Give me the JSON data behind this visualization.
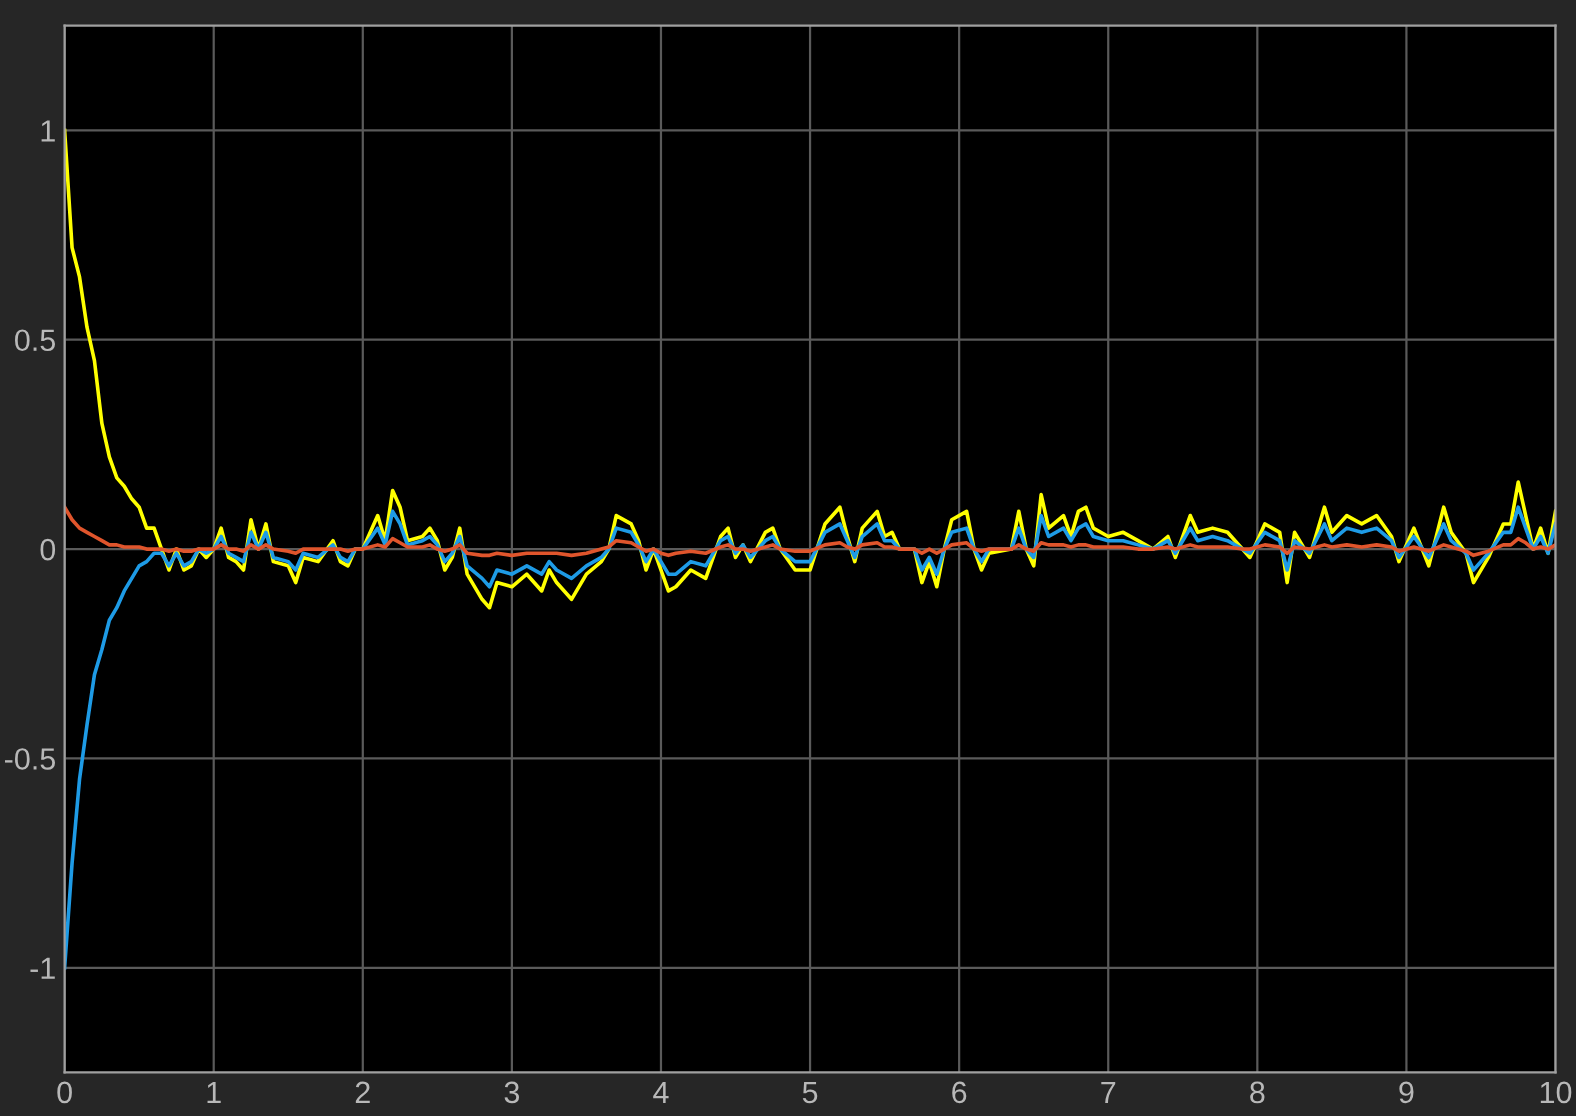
{
  "chart_data": {
    "type": "line",
    "xlim": [
      0,
      10
    ],
    "ylim": [
      -1.25,
      1.25
    ],
    "xticks": [
      0,
      1,
      2,
      3,
      4,
      5,
      6,
      7,
      8,
      9,
      10
    ],
    "yticks": [
      -1,
      -0.5,
      0,
      0.5,
      1
    ],
    "grid": true,
    "x": [
      0,
      0.05,
      0.1,
      0.15,
      0.2,
      0.25,
      0.3,
      0.35,
      0.4,
      0.45,
      0.5,
      0.55,
      0.6,
      0.65,
      0.7,
      0.75,
      0.8,
      0.85,
      0.9,
      0.95,
      1.0,
      1.05,
      1.1,
      1.15,
      1.2,
      1.25,
      1.3,
      1.35,
      1.4,
      1.5,
      1.55,
      1.6,
      1.7,
      1.8,
      1.85,
      1.9,
      1.95,
      2.0,
      2.1,
      2.15,
      2.2,
      2.25,
      2.3,
      2.4,
      2.45,
      2.5,
      2.55,
      2.6,
      2.65,
      2.7,
      2.8,
      2.85,
      2.9,
      3.0,
      3.1,
      3.2,
      3.25,
      3.3,
      3.4,
      3.5,
      3.6,
      3.65,
      3.7,
      3.8,
      3.85,
      3.9,
      3.95,
      4.0,
      4.05,
      4.1,
      4.2,
      4.3,
      4.4,
      4.45,
      4.5,
      4.55,
      4.6,
      4.7,
      4.75,
      4.8,
      4.9,
      5.0,
      5.1,
      5.2,
      5.25,
      5.3,
      5.35,
      5.45,
      5.5,
      5.55,
      5.6,
      5.7,
      5.75,
      5.8,
      5.85,
      5.9,
      5.95,
      6.05,
      6.1,
      6.15,
      6.2,
      6.35,
      6.4,
      6.45,
      6.5,
      6.55,
      6.6,
      6.7,
      6.75,
      6.8,
      6.85,
      6.9,
      7.0,
      7.1,
      7.2,
      7.3,
      7.4,
      7.45,
      7.55,
      7.6,
      7.7,
      7.8,
      7.9,
      7.95,
      8.05,
      8.15,
      8.2,
      8.25,
      8.35,
      8.45,
      8.5,
      8.6,
      8.7,
      8.8,
      8.9,
      8.95,
      9.05,
      9.15,
      9.25,
      9.3,
      9.4,
      9.45,
      9.55,
      9.65,
      9.7,
      9.75,
      9.8,
      9.85,
      9.9,
      9.95,
      10.0
    ],
    "series": [
      {
        "color": "#ffff00",
        "values": [
          1.0,
          0.72,
          0.65,
          0.53,
          0.45,
          0.3,
          0.22,
          0.17,
          0.15,
          0.12,
          0.1,
          0.05,
          0.05,
          0.0,
          -0.05,
          0.0,
          -0.05,
          -0.04,
          0.0,
          -0.02,
          0.0,
          0.05,
          -0.02,
          -0.03,
          -0.05,
          0.07,
          0.0,
          0.06,
          -0.03,
          -0.04,
          -0.08,
          -0.02,
          -0.03,
          0.02,
          -0.03,
          -0.04,
          0.0,
          0.0,
          0.08,
          0.02,
          0.14,
          0.1,
          0.02,
          0.03,
          0.05,
          0.02,
          -0.05,
          -0.02,
          0.05,
          -0.06,
          -0.12,
          -0.14,
          -0.08,
          -0.09,
          -0.06,
          -0.1,
          -0.05,
          -0.08,
          -0.12,
          -0.06,
          -0.03,
          0.0,
          0.08,
          0.06,
          0.02,
          -0.05,
          0.0,
          -0.05,
          -0.1,
          -0.09,
          -0.05,
          -0.07,
          0.03,
          0.05,
          -0.02,
          0.01,
          -0.03,
          0.04,
          0.05,
          0.0,
          -0.05,
          -0.05,
          0.06,
          0.1,
          0.03,
          -0.03,
          0.05,
          0.09,
          0.03,
          0.04,
          0.0,
          0.0,
          -0.08,
          -0.03,
          -0.09,
          0.0,
          0.07,
          0.09,
          0.0,
          -0.05,
          -0.01,
          0.0,
          0.09,
          0.0,
          -0.04,
          0.13,
          0.05,
          0.08,
          0.03,
          0.09,
          0.1,
          0.05,
          0.03,
          0.04,
          0.02,
          0.0,
          0.03,
          -0.02,
          0.08,
          0.04,
          0.05,
          0.04,
          0.0,
          -0.02,
          0.06,
          0.04,
          -0.08,
          0.04,
          -0.02,
          0.1,
          0.04,
          0.08,
          0.06,
          0.08,
          0.03,
          -0.03,
          0.05,
          -0.04,
          0.1,
          0.04,
          -0.01,
          -0.08,
          -0.02,
          0.06,
          0.06,
          0.16,
          0.08,
          0.0,
          0.05,
          -0.01,
          0.09
        ]
      },
      {
        "color": "#1e9be6",
        "values": [
          -1.0,
          -0.75,
          -0.55,
          -0.42,
          -0.3,
          -0.24,
          -0.17,
          -0.14,
          -0.1,
          -0.07,
          -0.04,
          -0.03,
          -0.01,
          -0.01,
          -0.04,
          -0.01,
          -0.04,
          -0.03,
          0.0,
          -0.01,
          0.0,
          0.03,
          -0.01,
          -0.02,
          -0.03,
          0.04,
          0.0,
          0.04,
          -0.02,
          -0.03,
          -0.05,
          -0.01,
          -0.02,
          0.01,
          -0.02,
          -0.03,
          0.0,
          0.0,
          0.05,
          0.01,
          0.09,
          0.06,
          0.01,
          0.02,
          0.03,
          0.01,
          -0.03,
          -0.01,
          0.03,
          -0.04,
          -0.07,
          -0.09,
          -0.05,
          -0.06,
          -0.04,
          -0.06,
          -0.03,
          -0.05,
          -0.07,
          -0.04,
          -0.02,
          0.0,
          0.05,
          0.04,
          0.01,
          -0.03,
          0.0,
          -0.03,
          -0.06,
          -0.06,
          -0.03,
          -0.04,
          0.02,
          0.03,
          -0.01,
          0.01,
          -0.02,
          0.02,
          0.03,
          0.0,
          -0.03,
          -0.03,
          0.04,
          0.06,
          0.02,
          -0.02,
          0.03,
          0.06,
          0.02,
          0.02,
          0.0,
          0.0,
          -0.05,
          -0.02,
          -0.06,
          0.0,
          0.04,
          0.05,
          0.0,
          -0.03,
          0.0,
          0.0,
          0.05,
          0.0,
          -0.02,
          0.08,
          0.03,
          0.05,
          0.02,
          0.05,
          0.06,
          0.03,
          0.02,
          0.02,
          0.01,
          0.0,
          0.02,
          -0.01,
          0.05,
          0.02,
          0.03,
          0.02,
          0.0,
          -0.01,
          0.04,
          0.02,
          -0.05,
          0.02,
          -0.01,
          0.06,
          0.02,
          0.05,
          0.04,
          0.05,
          0.02,
          -0.02,
          0.03,
          -0.02,
          0.06,
          0.02,
          -0.01,
          -0.05,
          -0.01,
          0.04,
          0.04,
          0.1,
          0.05,
          0.0,
          0.03,
          -0.01,
          0.06
        ]
      },
      {
        "color": "#e0552c",
        "values": [
          0.1,
          0.07,
          0.05,
          0.04,
          0.03,
          0.02,
          0.01,
          0.01,
          0.005,
          0.005,
          0.005,
          0.0,
          0.0,
          0.0,
          -0.005,
          0.0,
          -0.005,
          -0.005,
          0.0,
          0.0,
          0.0,
          0.01,
          0.0,
          0.0,
          -0.005,
          0.01,
          0.0,
          0.01,
          0.0,
          -0.005,
          -0.01,
          0.0,
          0.0,
          0.0,
          0.0,
          -0.005,
          0.0,
          0.0,
          0.01,
          0.005,
          0.025,
          0.015,
          0.005,
          0.005,
          0.01,
          0.0,
          -0.005,
          0.0,
          0.01,
          -0.01,
          -0.015,
          -0.015,
          -0.01,
          -0.015,
          -0.01,
          -0.01,
          -0.01,
          -0.01,
          -0.015,
          -0.01,
          0.0,
          0.005,
          0.02,
          0.015,
          0.005,
          -0.005,
          0.0,
          -0.01,
          -0.015,
          -0.01,
          -0.005,
          -0.01,
          0.005,
          0.01,
          0.0,
          0.0,
          -0.005,
          0.005,
          0.01,
          0.0,
          -0.005,
          -0.005,
          0.01,
          0.015,
          0.005,
          0.0,
          0.01,
          0.015,
          0.005,
          0.005,
          0.0,
          0.0,
          -0.01,
          0.0,
          -0.01,
          0.0,
          0.01,
          0.015,
          0.0,
          -0.005,
          0.0,
          0.0,
          0.01,
          0.0,
          -0.005,
          0.015,
          0.01,
          0.01,
          0.005,
          0.01,
          0.01,
          0.005,
          0.005,
          0.005,
          0.0,
          0.0,
          0.005,
          0.0,
          0.01,
          0.005,
          0.005,
          0.005,
          0.0,
          0.0,
          0.01,
          0.005,
          -0.01,
          0.005,
          0.0,
          0.01,
          0.005,
          0.01,
          0.005,
          0.01,
          0.005,
          -0.005,
          0.005,
          -0.005,
          0.01,
          0.005,
          -0.005,
          -0.015,
          -0.005,
          0.01,
          0.01,
          0.025,
          0.015,
          0.0,
          0.005,
          0.0,
          0.01
        ]
      }
    ]
  }
}
